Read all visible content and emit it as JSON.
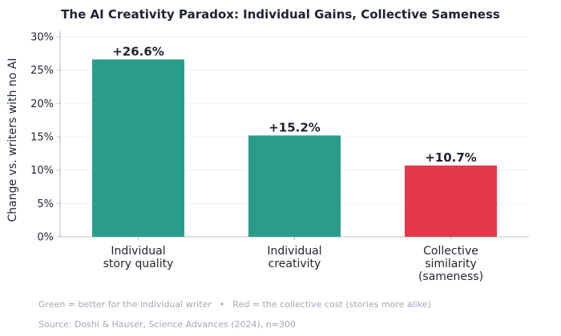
{
  "chart_data": {
    "type": "bar",
    "title": "The AI Creativity Paradox: Individual Gains, Collective Sameness",
    "ylabel": "Change vs. writers with no AI",
    "xlabel": "",
    "ylim": [
      0,
      30
    ],
    "yticks": [
      0,
      5,
      10,
      15,
      20,
      25,
      30
    ],
    "ytick_labels": [
      "0%",
      "5%",
      "10%",
      "15%",
      "20%",
      "25%",
      "30%"
    ],
    "grid": "horizontal",
    "categories": [
      [
        "Individual",
        "story quality"
      ],
      [
        "Individual",
        "creativity"
      ],
      [
        "Collective",
        "similarity",
        "(sameness)"
      ]
    ],
    "values": [
      26.6,
      15.2,
      10.7
    ],
    "data_labels": [
      "+26.6%",
      "+15.2%",
      "+10.7%"
    ],
    "colors": [
      "#2a9d8a",
      "#2a9d8a",
      "#e5384a"
    ]
  },
  "footer": {
    "legend_green": "Green = better for the individual writer",
    "separator": "•",
    "legend_red": "Red = the collective cost (stories more alike)",
    "source": "Source: Doshi & Hauser, Science Advances (2024), n=300"
  }
}
